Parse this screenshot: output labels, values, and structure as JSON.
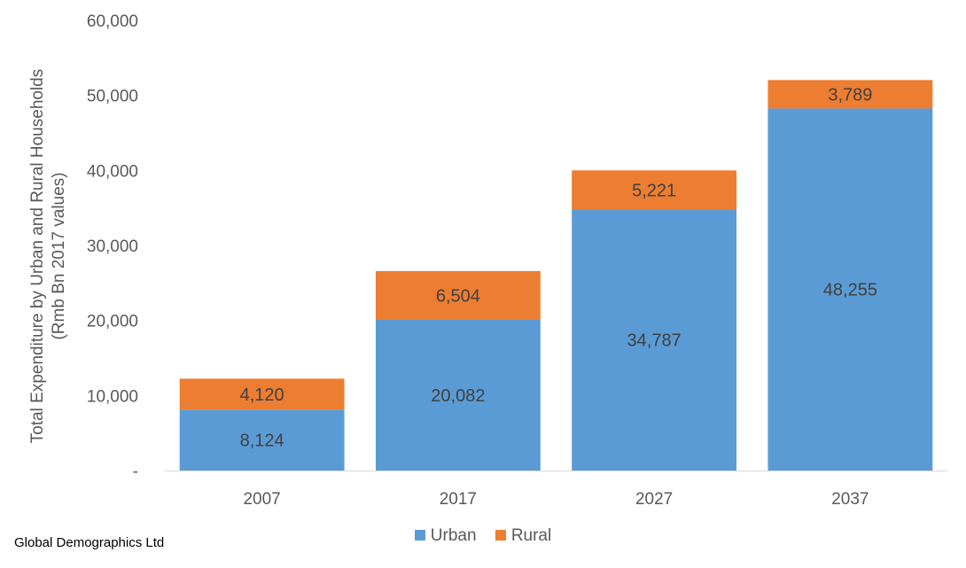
{
  "chart_data": {
    "type": "bar",
    "stacked": true,
    "categories": [
      "2007",
      "2017",
      "2027",
      "2037"
    ],
    "series": [
      {
        "name": "Urban",
        "values": [
          8124,
          20082,
          34787,
          48255
        ],
        "labels": [
          "8,124",
          "20,082",
          "34,787",
          "48,255"
        ],
        "color": "#5B9BD5"
      },
      {
        "name": "Rural",
        "values": [
          4120,
          6504,
          5221,
          3789
        ],
        "labels": [
          "4,120",
          "6,504",
          "5,221",
          "3,789"
        ],
        "color": "#ED7D31"
      }
    ],
    "ylabel_lines": [
      "Total Expenditure by Urban and Rural Households",
      "(Rmb Bn 2017 values)"
    ],
    "ylim": [
      0,
      60000
    ],
    "yticks": [
      0,
      10000,
      20000,
      30000,
      40000,
      50000,
      60000
    ],
    "ytick_labels": [
      "-",
      "10,000",
      "20,000",
      "30,000",
      "40,000",
      "50,000",
      "60,000"
    ],
    "grid": false,
    "legend_position": "bottom"
  },
  "footer": {
    "source": "Global Demographics Ltd"
  }
}
